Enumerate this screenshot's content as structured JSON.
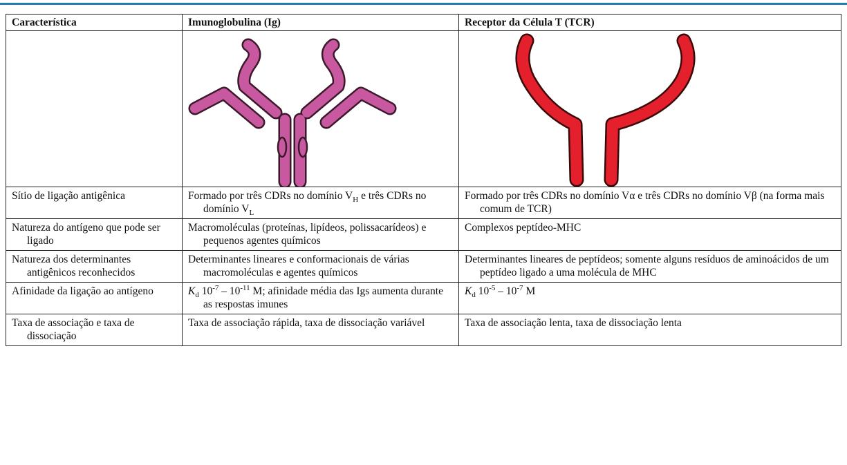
{
  "table": {
    "columns": [
      "Característica",
      "Imunoglobulina (Ig)",
      "Receptor da Célula T (TCR)"
    ],
    "rows": [
      [
        [
          "Sítio de ligação antigênica"
        ],
        [
          "Formado por três CDRs no domínio V",
          "H",
          " e três CDRs no domínio V",
          "L"
        ],
        [
          "Formado por três CDRs no domínio Vα e três CDRs no domínio Vβ (na forma mais comum de TCR)"
        ]
      ],
      [
        [
          "Natureza do antígeno que pode ser ligado"
        ],
        [
          "Macromoléculas (proteínas, lipídeos, polissacarídeos) e pequenos agentes químicos"
        ],
        [
          "Complexos peptídeo-MHC"
        ]
      ],
      [
        [
          "Natureza dos determinantes antigênicos reconhecidos"
        ],
        [
          "Determinantes lineares e conformacionais de várias macromoléculas e agentes químicos"
        ],
        [
          "Determinantes lineares de peptídeos; somente alguns resíduos de aminoácidos de um peptídeo ligado a uma molécula de MHC"
        ]
      ],
      [
        [
          "Afinidade da ligação ao antígeno"
        ],
        [
          "K",
          "d",
          " 10",
          "-7",
          " – 10",
          "-11",
          " M; afinidade média das Igs aumenta durante as respostas imunes"
        ],
        [
          "K",
          "d",
          " 10",
          "-5",
          " – 10",
          "-7",
          " M"
        ]
      ],
      [
        [
          "Taxa de associação e taxa de dissociação"
        ],
        [
          "Taxa de associação rápida, taxa de dissociação variável"
        ],
        [
          "Taxa de associação lenta, taxa de dissociação lenta"
        ]
      ]
    ]
  }
}
